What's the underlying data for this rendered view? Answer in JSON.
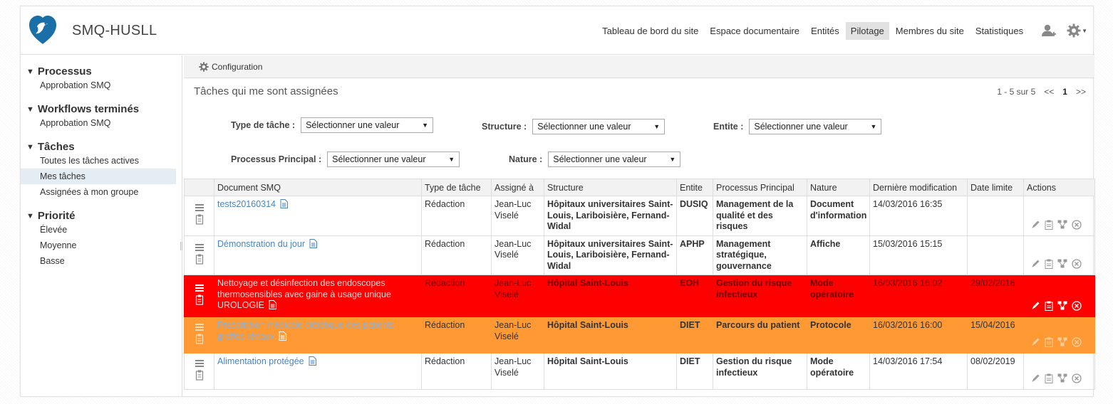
{
  "header": {
    "site_title": "SMQ-HUSLL",
    "nav": [
      "Tableau de bord du site",
      "Espace documentaire",
      "Entités",
      "Pilotage",
      "Membres du site",
      "Statistiques"
    ],
    "active_nav": "Pilotage",
    "icons": [
      "add-user-icon",
      "gear-icon"
    ]
  },
  "sidebar": {
    "groups": [
      {
        "title": "Processus",
        "items": [
          "Approbation SMQ"
        ]
      },
      {
        "title": "Workflows terminés",
        "items": [
          "Approbation SMQ"
        ]
      },
      {
        "title": "Tâches",
        "items": [
          "Toutes les tâches actives",
          "Mes tâches",
          "Assignées à mon groupe"
        ]
      },
      {
        "title": "Priorité",
        "items": [
          "Élevée",
          "Moyenne",
          "Basse"
        ]
      }
    ],
    "active_item": "Mes tâches"
  },
  "toolbar": {
    "config_label": "Configuration"
  },
  "panel": {
    "title": "Tâches qui me sont assignées",
    "pager": {
      "range": "1 - 5 sur 5",
      "prev": "<<",
      "page": "1",
      "next": ">>"
    }
  },
  "filters": {
    "type": {
      "label": "Type de tâche :",
      "value": "Sélectionner une valeur"
    },
    "structure": {
      "label": "Structure :",
      "value": "Sélectionner une valeur"
    },
    "entite": {
      "label": "Entite :",
      "value": "Sélectionner une valeur"
    },
    "processus": {
      "label": "Processus Principal :",
      "value": "Sélectionner une valeur"
    },
    "nature": {
      "label": "Nature :",
      "value": "Sélectionner une valeur"
    }
  },
  "table": {
    "columns": [
      "",
      "Document SMQ",
      "Type de tâche",
      "Assigné à",
      "Structure",
      "Entite",
      "Processus Principal",
      "Nature",
      "Dernière modification",
      "Date limite",
      "Actions"
    ],
    "rows": [
      {
        "doc": "tests20160314",
        "type": "Rédaction",
        "assignee": "Jean-Luc Viselé",
        "structure": "Hôpitaux universitaires Saint-Louis, Lariboisière, Fernand-Widal",
        "entite": "DUSIQ",
        "processus": "Management de la qualité et des risques",
        "nature": "Document d'information",
        "modified": "14/03/2016 16:35",
        "due": "",
        "highlight": "none"
      },
      {
        "doc": "Démonstration du jour",
        "type": "Rédaction",
        "assignee": "Jean-Luc Viselé",
        "structure": "Hôpitaux universitaires Saint-Louis, Lariboisière, Fernand-Widal",
        "entite": "APHP",
        "processus": "Management stratégique, gouvernance",
        "nature": "Affiche",
        "modified": "15/03/2016 15:15",
        "due": "",
        "highlight": "none"
      },
      {
        "doc": "Nettoyage et désinfection des endoscopes thermosensibles avec gaine à usage unique UROLOGIE",
        "type": "Rédaction",
        "assignee": "Jean-Luc Viselé",
        "structure": "Hôpital Saint-Louis",
        "entite": "EOH",
        "processus": "Gestion du risque infectieux",
        "nature": "Mode opératoire",
        "modified": "16/03/2016 16:02",
        "due": "29/02/2016",
        "highlight": "red"
      },
      {
        "doc": "Prescription médicale diététique des patients greffés rénaux",
        "type": "Rédaction",
        "assignee": "Jean-Luc Viselé",
        "structure": "Hôpital Saint-Louis",
        "entite": "DIET",
        "processus": "Parcours du patient",
        "nature": "Protocole",
        "modified": "16/03/2016 16:00",
        "due": "15/04/2016",
        "highlight": "orange"
      },
      {
        "doc": "Alimentation protégée",
        "type": "Rédaction",
        "assignee": "Jean-Luc Viselé",
        "structure": "Hôpital Saint-Louis",
        "entite": "DIET",
        "processus": "Gestion du risque infectieux",
        "nature": "Mode opératoire",
        "modified": "14/03/2016 17:54",
        "due": "08/02/2019",
        "highlight": "none"
      }
    ],
    "row_icons": [
      "drag-handle-icon",
      "clipboard-icon",
      "document-icon"
    ],
    "action_icons": [
      "edit-icon",
      "details-icon",
      "workflow-icon",
      "cancel-icon"
    ]
  },
  "colors": {
    "accent_blue": "#4a84bf",
    "logo_blue": "#1a6fa8",
    "overdue_red": "#fe0000",
    "warning_orange": "#fe9933"
  }
}
